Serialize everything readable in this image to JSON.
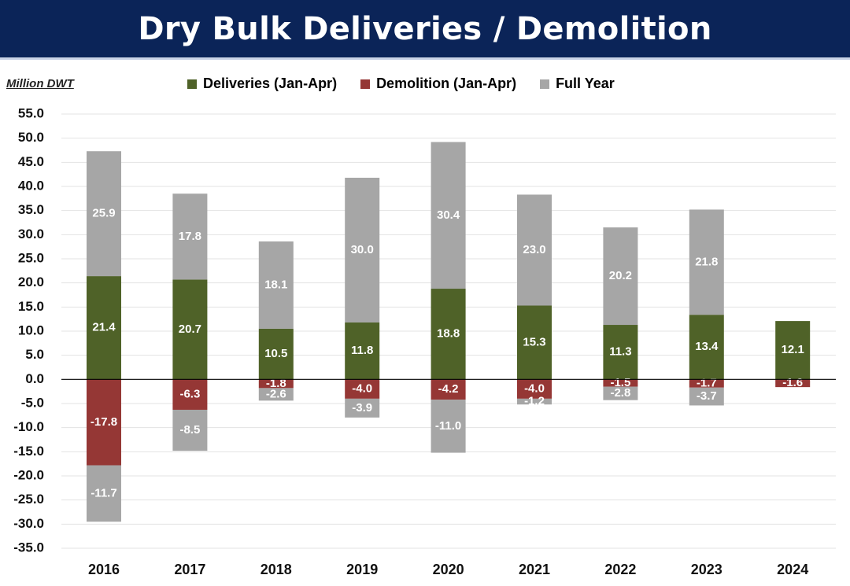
{
  "header": {
    "title": "Dry Bulk Deliveries / Demolition"
  },
  "chart_data": {
    "type": "bar",
    "stacked": true,
    "unit_label": "Million DWT",
    "categories": [
      "2016",
      "2017",
      "2018",
      "2019",
      "2020",
      "2021",
      "2022",
      "2023",
      "2024"
    ],
    "series": [
      {
        "name": "Deliveries (Jan-Apr)",
        "color": "#4f6228",
        "values": [
          21.4,
          20.7,
          10.5,
          11.8,
          18.8,
          15.3,
          11.3,
          13.4,
          12.1
        ]
      },
      {
        "name": "Demolition (Jan-Apr)",
        "color": "#953735",
        "values": [
          -17.8,
          -6.3,
          -1.8,
          -4.0,
          -4.2,
          -4.0,
          -1.5,
          -1.7,
          -1.6
        ]
      },
      {
        "name": "Full Year",
        "color": "#a6a6a6",
        "values_positive": [
          25.9,
          17.8,
          18.1,
          30.0,
          30.4,
          23.0,
          20.2,
          21.8,
          null
        ],
        "values_negative": [
          -11.7,
          -8.5,
          -2.6,
          -3.9,
          -11.0,
          -1.2,
          -2.8,
          -3.7,
          null
        ]
      }
    ],
    "ylim": [
      -35.0,
      55.0
    ],
    "yticks": [
      "55.0",
      "50.0",
      "45.0",
      "40.0",
      "35.0",
      "30.0",
      "25.0",
      "20.0",
      "15.0",
      "10.0",
      "5.0",
      "0.0",
      "-5.0",
      "-10.0",
      "-15.0",
      "-20.0",
      "-25.0",
      "-30.0",
      "-35.0"
    ],
    "grid": true,
    "legend": "top"
  }
}
